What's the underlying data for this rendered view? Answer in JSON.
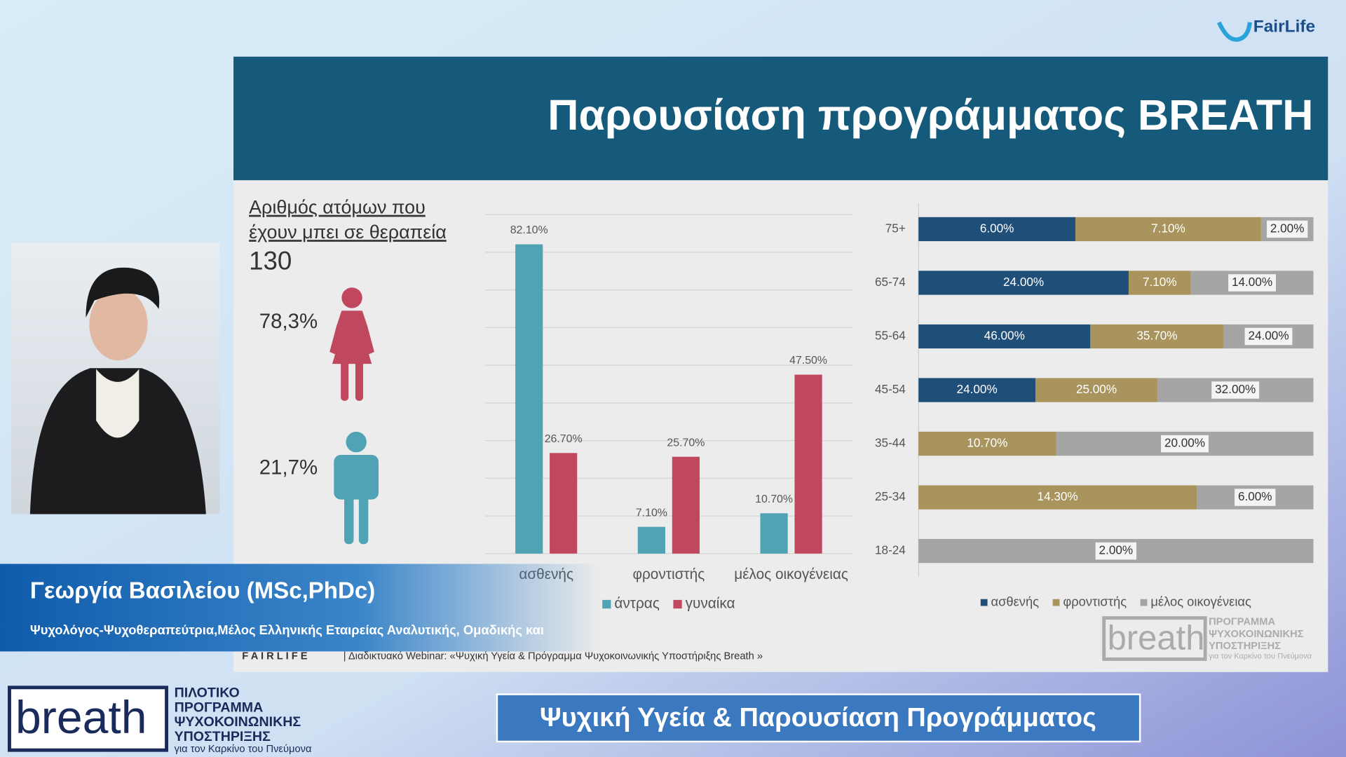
{
  "header": {
    "title": "Παρουσίαση προγράμματος BREATH"
  },
  "summary": {
    "label_lines": [
      "Αριθμός ατόμων που",
      "έχουν μπει σε θεραπεία"
    ],
    "total": "130",
    "women": "78,3%",
    "men": "21,7%"
  },
  "chart_data": [
    {
      "type": "bar",
      "categories": [
        "ασθενής",
        "φροντιστής",
        "μέλος οικογένειας"
      ],
      "series": [
        {
          "name": "άντρας",
          "color": "#4fa3b4",
          "values": [
            82.1,
            7.1,
            10.7
          ],
          "value_labels": [
            "82.10%",
            "7.10%",
            "10.70%"
          ]
        },
        {
          "name": "γυναίκα",
          "color": "#c0485e",
          "values": [
            26.7,
            25.7,
            47.5
          ],
          "value_labels": [
            "26.70%",
            "25.70%",
            "47.50%"
          ]
        }
      ],
      "ylim": [
        0,
        90
      ],
      "yticks": [
        0,
        10,
        20,
        30,
        40,
        50,
        60,
        70,
        80,
        90
      ],
      "grid": true,
      "legend": "bottom"
    },
    {
      "type": "bar",
      "orientation": "horizontal",
      "stacking": "percent",
      "categories": [
        "75+",
        "65-74",
        "55-64",
        "45-54",
        "35-44",
        "25-34",
        "18-24"
      ],
      "series": [
        {
          "name": "ασθενής",
          "color": "#1f4e79",
          "values": [
            6,
            24,
            46,
            24,
            null,
            null,
            null
          ],
          "value_labels": [
            "6.00%",
            "24.00%",
            "46.00%",
            "24.00%",
            null,
            null,
            null
          ]
        },
        {
          "name": "φροντιστής",
          "color": "#a8945c",
          "values": [
            7.1,
            7.1,
            35.7,
            25,
            10.7,
            14.3,
            null
          ],
          "value_labels": [
            "7.10%",
            "7.10%",
            "35.70%",
            "25.00%",
            "10.70%",
            "14.30%",
            null
          ]
        },
        {
          "name": "μέλος οικογένειας",
          "color": "#a5a5a5",
          "values": [
            2,
            14,
            24,
            32,
            20,
            6,
            2
          ],
          "value_labels": [
            "2.00%",
            "14.00%",
            "24.00%",
            "32.00%",
            "20.00%",
            "6.00%",
            "2.00%"
          ]
        }
      ],
      "legend": "bottom"
    }
  ],
  "footer": {
    "brand": "F A I R L I F E",
    "text": "| Διαδικτυακό Webinar: «Ψυχική Υγεία & Πρόγραμμα Ψυχοκοινωνικής Υποστήριξης Breath »"
  },
  "slide_logo": {
    "word": "breath",
    "lines": [
      "ΠΡΟΓΡΑΜΜΑ",
      "ΨΥΧΟΚΟΙΝΩΝΙΚΗΣ",
      "ΥΠΟΣΤΗΡΙΞΗΣ"
    ],
    "tagline": "για τον Καρκίνο του Πνεύμονα"
  },
  "speaker": {
    "name": "Γεωργία Βασιλείου (MSc,PhDc)",
    "role": "Ψυχολόγος-Ψυχοθεραπεύτρια,Μέλος Ελληνικής Εταιρείας Αναλυτικής, Ομαδικής και"
  },
  "program_logo": {
    "word": "breath",
    "lines": [
      "ΠΙΛΟΤΙΚΟ",
      "ΠΡΟΓΡΑΜΜΑ",
      "ΨΥΧΟΚΟΙΝΩΝΙΚΗΣ",
      "ΥΠΟΣΤΗΡΙΞΗΣ"
    ],
    "tagline": "για τον Καρκίνο του Πνεύμονα"
  },
  "banner": "Ψυχική Υγεία & Παρουσίαση Προγράμματος",
  "brand_logo": "FairLife"
}
